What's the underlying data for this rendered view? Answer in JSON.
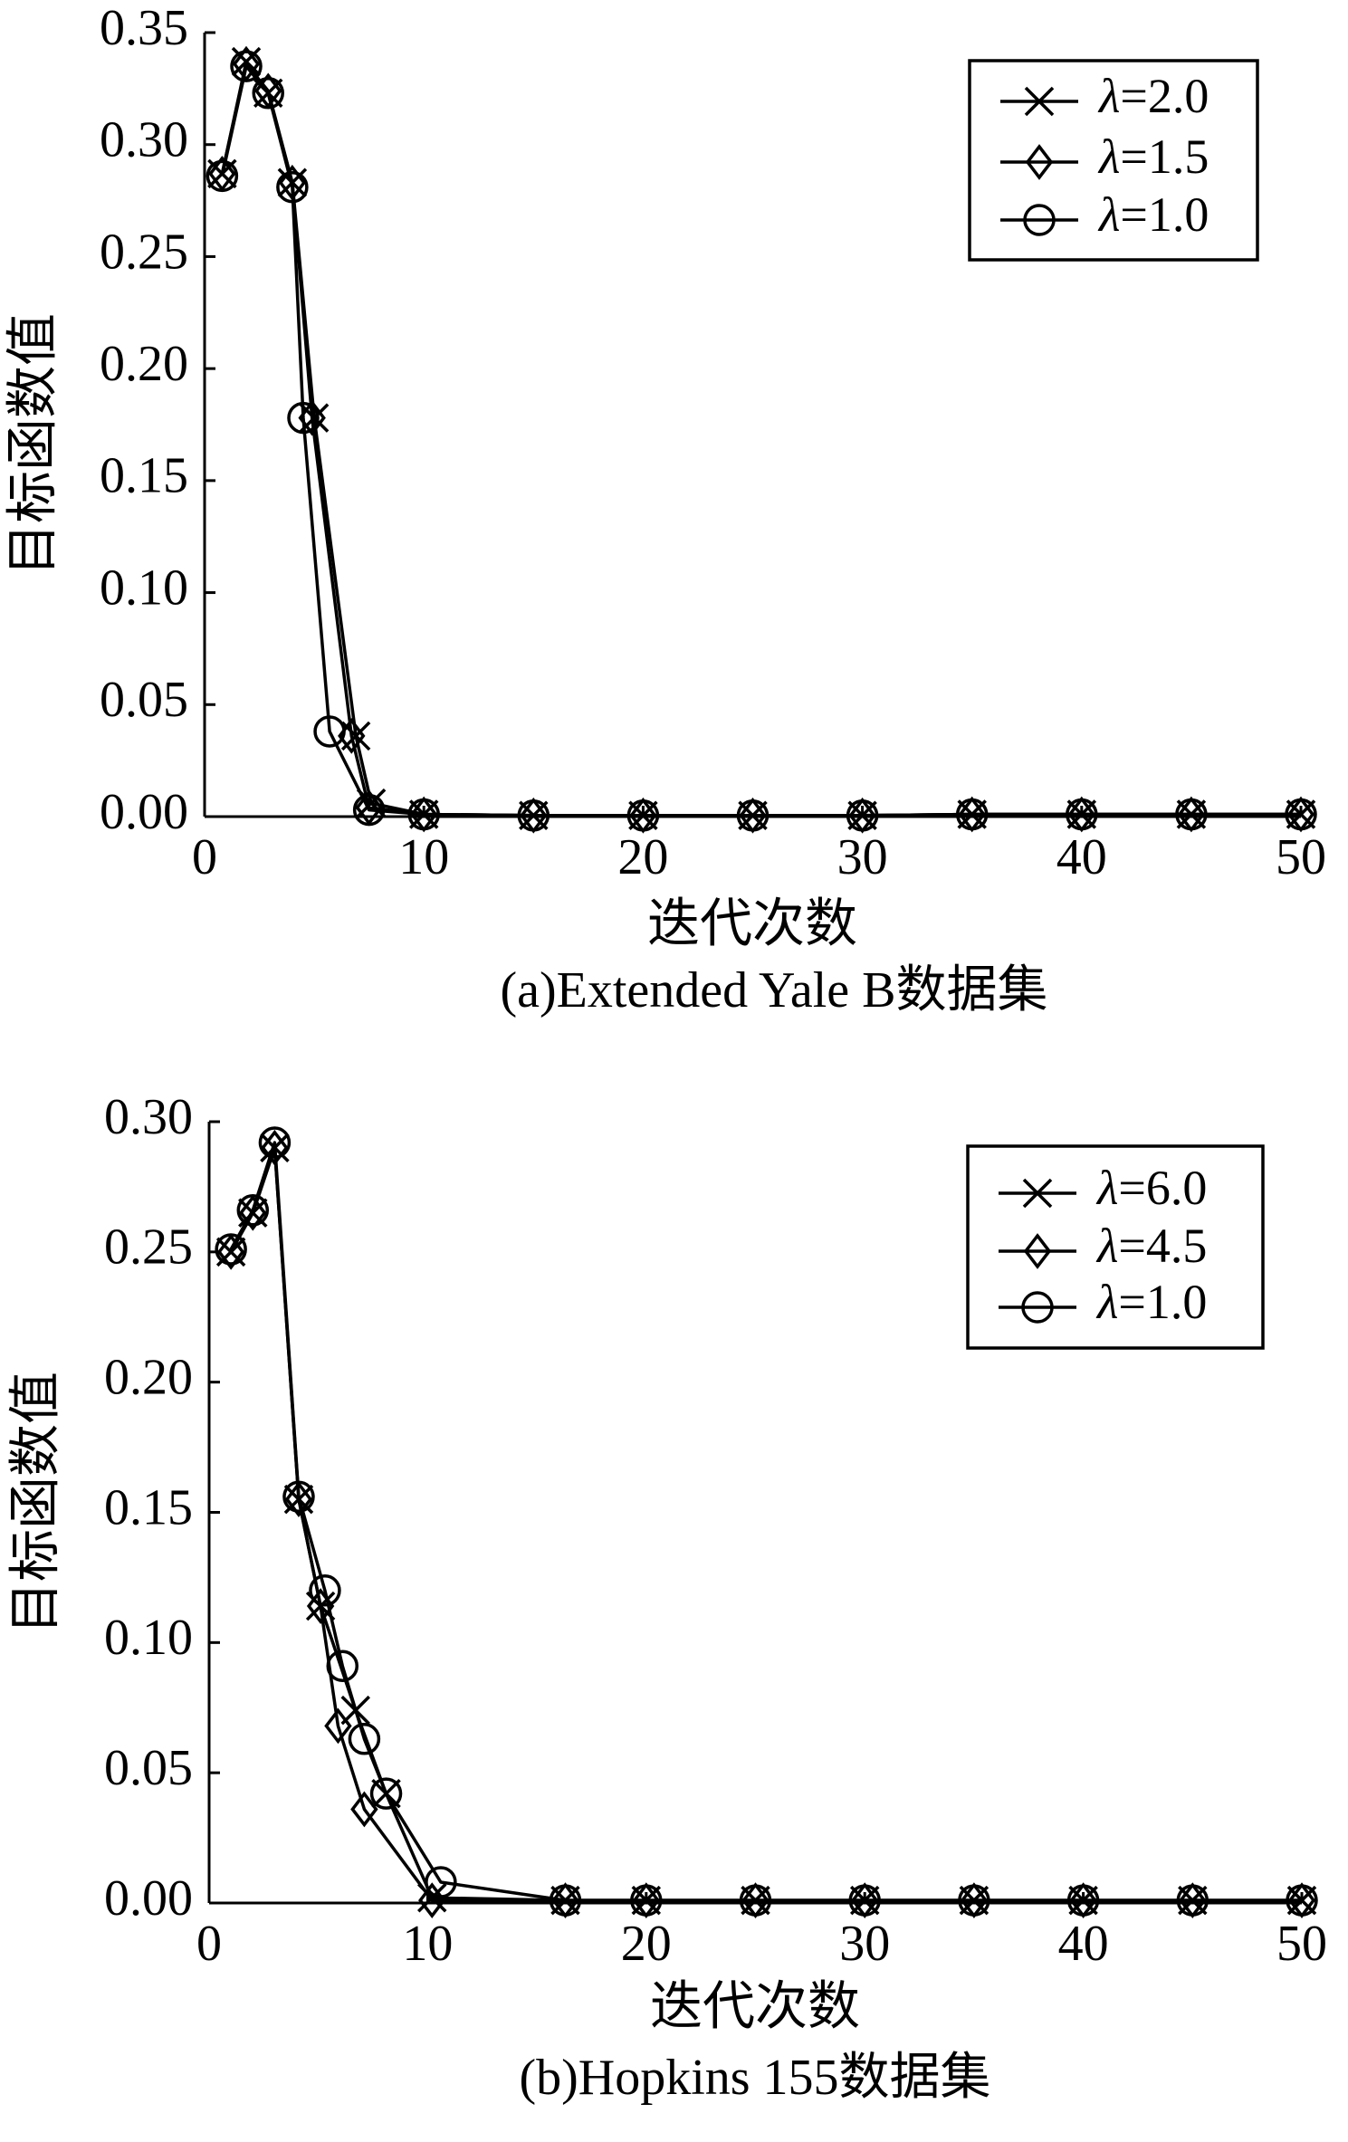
{
  "chart_data": [
    {
      "type": "line",
      "caption": "(a)Extended Yale B数据集",
      "xlabel": "迭代次数",
      "ylabel": "目标函数值",
      "xlim": [
        0,
        50
      ],
      "ylim": [
        0,
        0.35
      ],
      "xticks": [
        0,
        10,
        20,
        30,
        40,
        50
      ],
      "xtick_labels": [
        "0",
        "10",
        "20",
        "30",
        "40",
        "50"
      ],
      "yticks": [
        0,
        0.05,
        0.1,
        0.15,
        0.2,
        0.25,
        0.3,
        0.35
      ],
      "ytick_labels": [
        "0.00",
        "0.05",
        "0.10",
        "0.15",
        "0.20",
        "0.25",
        "0.30",
        "0.35"
      ],
      "grid": false,
      "legend_position": "top-right",
      "series": [
        {
          "name": "λ=2.0",
          "marker": "x",
          "color": "#000000",
          "x": [
            0.8,
            1.9,
            2.9,
            4.0,
            5.0,
            6.9,
            7.6,
            10,
            15,
            20,
            25,
            30,
            35,
            40,
            45,
            50
          ],
          "y": [
            0.287,
            0.337,
            0.323,
            0.283,
            0.178,
            0.036,
            0.006,
            0.001,
            0.0005,
            0.0005,
            0.0005,
            0.0005,
            0.001,
            0.001,
            0.001,
            0.001
          ]
        },
        {
          "name": "λ=1.5",
          "marker": "diamond",
          "color": "#000000",
          "x": [
            0.8,
            1.9,
            2.9,
            4.0,
            4.9,
            6.7,
            7.5,
            10,
            15,
            20,
            25,
            30,
            35,
            40,
            45,
            50
          ],
          "y": [
            0.287,
            0.336,
            0.324,
            0.283,
            0.178,
            0.036,
            0.004,
            0.001,
            0.0005,
            0.0005,
            0.0005,
            0.0005,
            0.001,
            0.001,
            0.001,
            0.001
          ]
        },
        {
          "name": "λ=1.0",
          "marker": "circle",
          "color": "#000000",
          "x": [
            0.8,
            1.9,
            2.9,
            4.0,
            4.5,
            5.7,
            7.5,
            10,
            15,
            20,
            25,
            30,
            35,
            40,
            45,
            50
          ],
          "y": [
            0.286,
            0.335,
            0.323,
            0.281,
            0.178,
            0.038,
            0.003,
            0.001,
            0.0005,
            0.0005,
            0.0005,
            0.0005,
            0.001,
            0.001,
            0.001,
            0.001
          ]
        }
      ]
    },
    {
      "type": "line",
      "caption": "(b)Hopkins 155数据集",
      "xlabel": "迭代次数",
      "ylabel": "目标函数值",
      "xlim": [
        0,
        50
      ],
      "ylim": [
        0,
        0.3
      ],
      "xticks": [
        0,
        10,
        20,
        30,
        40,
        50
      ],
      "xtick_labels": [
        "0",
        "10",
        "20",
        "30",
        "40",
        "50"
      ],
      "yticks": [
        0,
        0.05,
        0.1,
        0.15,
        0.2,
        0.25,
        0.3
      ],
      "ytick_labels": [
        "0.00",
        "0.05",
        "0.10",
        "0.15",
        "0.20",
        "0.25",
        "0.30"
      ],
      "grid": false,
      "legend_position": "top-right",
      "series": [
        {
          "name": "λ=6.0",
          "marker": "x",
          "color": "#000000",
          "x": [
            1.0,
            2.0,
            3.0,
            4.1,
            5.1,
            6.7,
            8.1,
            10.2,
            16.3,
            20,
            25,
            30,
            35,
            40,
            45,
            50
          ],
          "y": [
            0.25,
            0.265,
            0.29,
            0.155,
            0.114,
            0.074,
            0.042,
            0.002,
            0.001,
            0.001,
            0.001,
            0.001,
            0.001,
            0.001,
            0.001,
            0.001
          ]
        },
        {
          "name": "λ=4.5",
          "marker": "diamond",
          "color": "#000000",
          "x": [
            1.0,
            2.0,
            3.0,
            4.1,
            5.1,
            5.9,
            7.1,
            10.2,
            16.3,
            20,
            25,
            30,
            35,
            40,
            45,
            50
          ],
          "y": [
            0.25,
            0.265,
            0.29,
            0.155,
            0.114,
            0.068,
            0.036,
            0.001,
            0.001,
            0.001,
            0.001,
            0.001,
            0.001,
            0.001,
            0.001,
            0.001
          ]
        },
        {
          "name": "λ=1.0",
          "marker": "circle",
          "color": "#000000",
          "x": [
            1.0,
            2.0,
            3.0,
            4.1,
            5.3,
            6.1,
            7.1,
            8.1,
            10.6,
            16.3,
            20,
            25,
            30,
            35,
            40,
            45,
            50
          ],
          "y": [
            0.251,
            0.266,
            0.292,
            0.156,
            0.12,
            0.091,
            0.063,
            0.042,
            0.008,
            0.001,
            0.001,
            0.001,
            0.001,
            0.001,
            0.001,
            0.001,
            0.001
          ]
        }
      ]
    }
  ]
}
